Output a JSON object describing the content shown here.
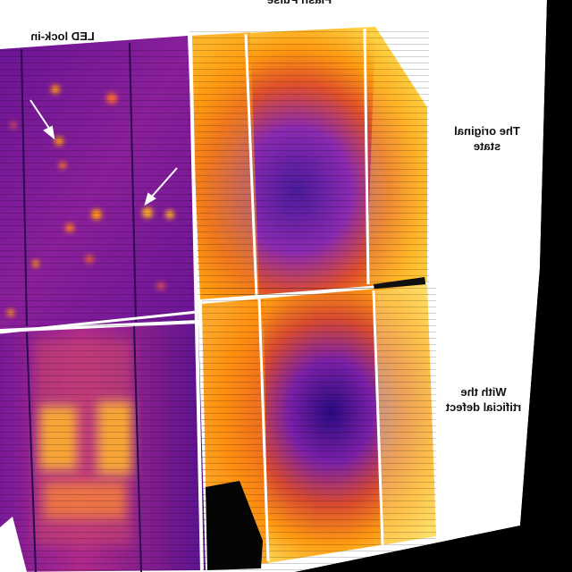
{
  "figure": {
    "columns": [
      {
        "title": "LED lock-in"
      },
      {
        "title": "Flash Pulse"
      }
    ],
    "rows": [
      {
        "label_line1": "The original",
        "label_line2": "state"
      },
      {
        "label_line1": "With the",
        "label_line2": "rtificial defect"
      }
    ]
  },
  "colors": {
    "background": "#000000",
    "page": "#ffffff",
    "led_base": "#6a1595",
    "led_hot": "#ff9a10",
    "flash_center": "#4a1a9a",
    "flash_edge": "#ffd040",
    "divider": "#ffffff"
  }
}
